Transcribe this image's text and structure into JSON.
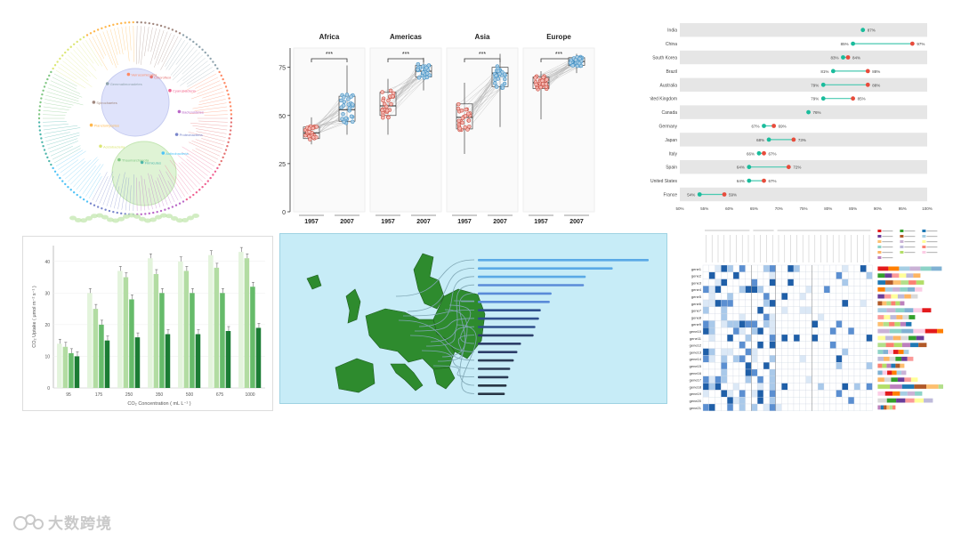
{
  "watermark": {
    "text": "大数跨境"
  },
  "chart_data": [
    {
      "type": "tree",
      "title": "",
      "nodes": [
        "Chloroflexi",
        "Cyanobacteria",
        "Bacteroidetes",
        "Proteobacteria",
        "Actinobacteria",
        "Firmicutes",
        "Thaumarchaeota",
        "Acidobacteria",
        "Planctomycetes",
        "Spirochaetes",
        "Gemmatimonadetes",
        "Verrucomicrobia"
      ]
    },
    {
      "type": "boxplot",
      "panels": [
        "Africa",
        "Americas",
        "Asia",
        "Europe"
      ],
      "groups": [
        "1957",
        "2007"
      ],
      "significance": "***",
      "ylim": [
        0,
        85
      ],
      "yticks": [
        0,
        25,
        50,
        75
      ],
      "stats": {
        "Africa": {
          "1957": [
            35,
            38,
            41,
            44,
            49
          ],
          "2007": [
            40,
            47,
            53,
            60,
            76
          ]
        },
        "Americas": {
          "1957": [
            40,
            50,
            55,
            62,
            69
          ],
          "2007": [
            63,
            70,
            73,
            76,
            80
          ]
        },
        "Asia": {
          "1957": [
            30,
            43,
            49,
            56,
            67
          ],
          "2007": [
            44,
            65,
            72,
            75,
            82
          ]
        },
        "Europe": {
          "1957": [
            48,
            64,
            67,
            70,
            73
          ],
          "2007": [
            72,
            76,
            78,
            80,
            82
          ]
        }
      }
    },
    {
      "type": "dumbbell",
      "xlim": [
        50,
        100
      ],
      "xticks": [
        "50%",
        "55%",
        "60%",
        "65%",
        "70%",
        "75%",
        "80%",
        "85%",
        "90%",
        "95%",
        "100%"
      ],
      "rows": [
        {
          "name": "India",
          "a": 87,
          "b": null,
          "la": "87%",
          "lb": ""
        },
        {
          "name": "China",
          "a": 85,
          "b": 97,
          "la": "85%",
          "lb": "97%"
        },
        {
          "name": "South Korea",
          "a": 83,
          "b": 84,
          "la": "83%",
          "lb": "84%"
        },
        {
          "name": "Brazil",
          "a": 81,
          "b": 88,
          "la": "81%",
          "lb": "88%"
        },
        {
          "name": "Australia",
          "a": 79,
          "b": 88,
          "la": "79%",
          "lb": "88%"
        },
        {
          "name": "United Kingdom",
          "a": 79,
          "b": 85,
          "la": "79%",
          "lb": "85%"
        },
        {
          "name": "Canada",
          "a": 76,
          "b": null,
          "la": "76%",
          "lb": ""
        },
        {
          "name": "Germany",
          "a": 67,
          "b": 69,
          "la": "67%",
          "lb": "69%"
        },
        {
          "name": "Japan",
          "a": 68,
          "b": 73,
          "la": "68%",
          "lb": "73%"
        },
        {
          "name": "Italy",
          "a": 66,
          "b": 67,
          "la": "66%",
          "lb": "67%"
        },
        {
          "name": "Spain",
          "a": 64,
          "b": 72,
          "la": "64%",
          "lb": "72%"
        },
        {
          "name": "United States",
          "a": 64,
          "b": 67,
          "la": "64%",
          "lb": "67%"
        },
        {
          "name": "France",
          "a": 54,
          "b": 59,
          "la": "54%",
          "lb": "59%"
        }
      ]
    },
    {
      "type": "bar",
      "xlabel": "CO₂ Concentration ( mL L⁻¹ )",
      "ylabel": "CO₂ Uptake ( μmol m⁻² s⁻¹ )",
      "categories": [
        "95",
        "175",
        "250",
        "350",
        "500",
        "675",
        "1000"
      ],
      "ylim": [
        0,
        45
      ],
      "yticks": [
        0,
        10,
        20,
        30,
        40
      ],
      "series": [
        {
          "values": [
            14,
            30,
            37,
            41,
            40,
            42,
            43
          ]
        },
        {
          "values": [
            13,
            25,
            35,
            36,
            37,
            38,
            41
          ]
        },
        {
          "values": [
            11,
            20,
            28,
            30,
            30,
            30,
            32
          ]
        },
        {
          "values": [
            10,
            15,
            16,
            17,
            17,
            18,
            19
          ]
        }
      ],
      "colors": [
        "#e3f4dc",
        "#b2dca2",
        "#66bb6a",
        "#1b7c34"
      ]
    },
    {
      "type": "bar",
      "orientation": "horizontal",
      "values": [
        190,
        150,
        120,
        118,
        82,
        80,
        70,
        68,
        64,
        62,
        48,
        44,
        40,
        36,
        34,
        32,
        30
      ],
      "colors": [
        "#5aa9e6",
        "#5a8bd8",
        "#2f4f8c",
        "#2d3e6a",
        "#2b3b55",
        "#283544",
        "#262f3a"
      ]
    },
    {
      "type": "heatmap",
      "rows": [
        "gene1",
        "gene2",
        "gene3",
        "gene4",
        "gene5",
        "gene6",
        "gene7",
        "gene8",
        "gene9",
        "gene10",
        "gene11",
        "gene12",
        "gene13",
        "gene14",
        "gene15",
        "gene16",
        "gene17",
        "gene18",
        "gene19",
        "gene20",
        "gene21"
      ],
      "legend_colors": [
        "#e31a1c",
        "#33a02c",
        "#1f78b4",
        "#ff7f00",
        "#6a3d9a",
        "#b15928",
        "#a6cee3",
        "#fb9a99",
        "#fdbf6f",
        "#cab2d6",
        "#ffff99",
        "#b2df8a",
        "#8dd3c7",
        "#bebada",
        "#fb8072",
        "#80b1d3",
        "#fdb462",
        "#b3de69",
        "#fccde5",
        "#d9d9d9",
        "#bc80bd"
      ],
      "bar_lengths": [
        0.72,
        0.48,
        0.52,
        0.5,
        0.45,
        0.3,
        0.6,
        0.42,
        0.38,
        0.8,
        0.52,
        0.55,
        0.35,
        0.4,
        0.3,
        0.32,
        0.45,
        0.82,
        0.5,
        0.62,
        0.2
      ]
    }
  ]
}
